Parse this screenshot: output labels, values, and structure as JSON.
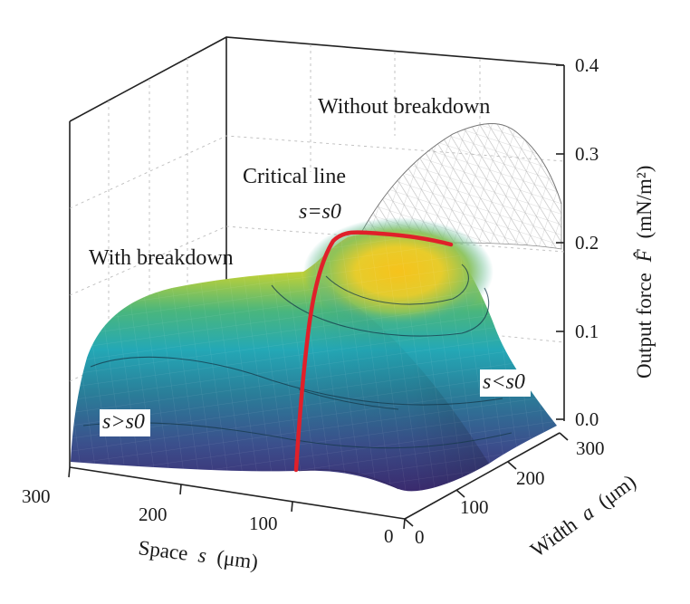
{
  "chart_data": {
    "type": "surface",
    "title": "",
    "axes": {
      "s": {
        "label": "Space",
        "symbol": "s",
        "unit": "(μm)",
        "range": [
          0,
          300
        ],
        "ticks": [
          "0",
          "100",
          "200",
          "300"
        ]
      },
      "a": {
        "label": "Width",
        "symbol": "a",
        "unit": "(μm)",
        "range": [
          0,
          300
        ],
        "ticks": [
          "0",
          "100",
          "200",
          "300"
        ]
      },
      "z": {
        "label": "Output force",
        "symbol": "F̂",
        "unit": "(mN/m²)",
        "range": [
          0.0,
          0.4
        ],
        "ticks": [
          "0.0",
          "0.1",
          "0.2",
          "0.3",
          "0.4"
        ]
      }
    },
    "annotations": {
      "without_breakdown": "Without breakdown",
      "with_breakdown": "With breakdown",
      "critical_line": "Critical line",
      "critical_eq": "s=s0",
      "s_gt": "s>s0",
      "s_lt": "s<s0"
    },
    "critical_line": {
      "color": "#e0202a",
      "points": [
        {
          "a": 0,
          "s": 88,
          "F": 0.02
        },
        {
          "a": 100,
          "s": 83,
          "F": 0.14
        },
        {
          "a": 200,
          "s": 74,
          "F": 0.2
        },
        {
          "a": 260,
          "s": 52,
          "F": 0.22
        },
        {
          "a": 300,
          "s": 30,
          "F": 0.21
        }
      ]
    },
    "colormap": [
      "#3a2c74",
      "#31578d",
      "#2b8c8d",
      "#2cb4b0",
      "#6cc36a",
      "#d9d635",
      "#f7c21d"
    ]
  }
}
